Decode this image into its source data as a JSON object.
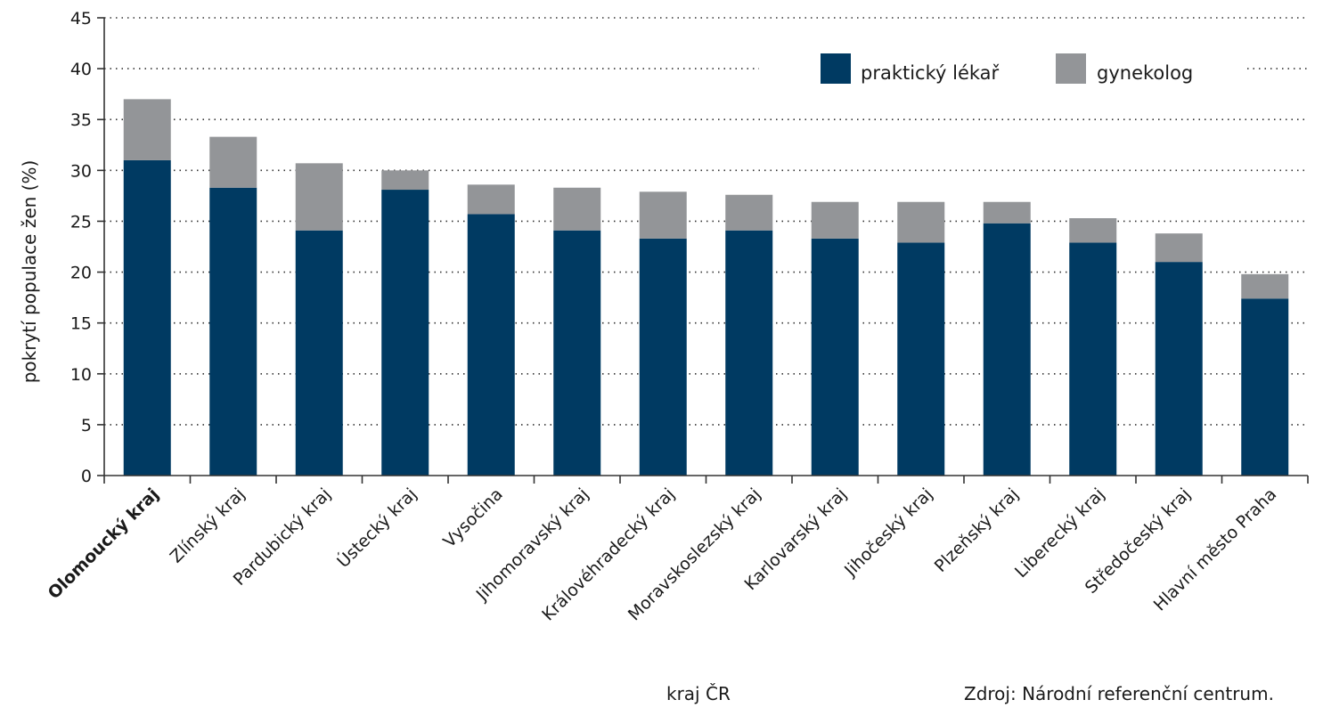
{
  "chart_data": {
    "type": "bar",
    "stacked": true,
    "categories": [
      "Olomoucký kraj",
      "Zlínský kraj",
      "Pardubický kraj",
      "Ústecký kraj",
      "Vysočina",
      "Jihomoravský kraj",
      "Královéhradecký kraj",
      "Moravskoslezský kraj",
      "Karlovarský kraj",
      "Jihočeský kraj",
      "Plzeňský kraj",
      "Liberecký kraj",
      "Středočeský kraj",
      "Hlavní město Praha"
    ],
    "highlighted_category": "Olomoucký kraj",
    "series": [
      {
        "name": "praktický lékař",
        "color": "#003a62",
        "values": [
          31.0,
          28.3,
          24.1,
          28.1,
          25.7,
          24.1,
          23.3,
          24.1,
          23.3,
          22.9,
          24.8,
          22.9,
          21.0,
          17.4
        ]
      },
      {
        "name": "gynekolog",
        "color": "#939598",
        "values": [
          6.0,
          5.0,
          6.6,
          1.9,
          2.9,
          4.2,
          4.6,
          3.5,
          3.6,
          4.0,
          2.1,
          2.4,
          2.8,
          2.4
        ]
      }
    ],
    "ylabel": "pokrytí populace žen (%)",
    "xlabel": "kraj ČR",
    "ylim": [
      0,
      45
    ],
    "yticks": [
      0,
      5,
      10,
      15,
      20,
      25,
      30,
      35,
      40,
      45
    ],
    "grid": true,
    "legend_position": "top-right",
    "source": "Zdroj: Národní referenční centrum."
  }
}
